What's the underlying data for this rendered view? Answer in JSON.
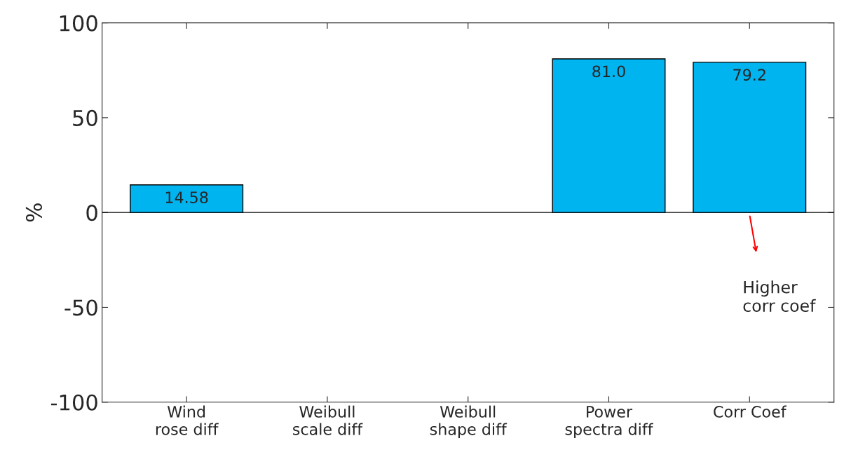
{
  "chart_data": {
    "type": "bar",
    "ylabel": "%",
    "categories": [
      "Wind\nrose diff",
      "Weibull\nscale diff",
      "Weibull\nshape diff",
      "Power\nspectra diff",
      "Corr Coef"
    ],
    "values": [
      14.58,
      null,
      null,
      81.0,
      79.2
    ],
    "value_labels": [
      "14.58",
      null,
      null,
      "81.0",
      "79.2"
    ],
    "color": "#00b4f0",
    "ylim": [
      -100,
      100
    ],
    "yticks": [
      -100,
      -50,
      0,
      50,
      100
    ],
    "ref_lines": [
      {
        "axis": "y",
        "value": 0,
        "color": "#000000"
      }
    ],
    "annotations": [
      "Higher\ncorr coef"
    ],
    "grid": false,
    "legend": false
  }
}
